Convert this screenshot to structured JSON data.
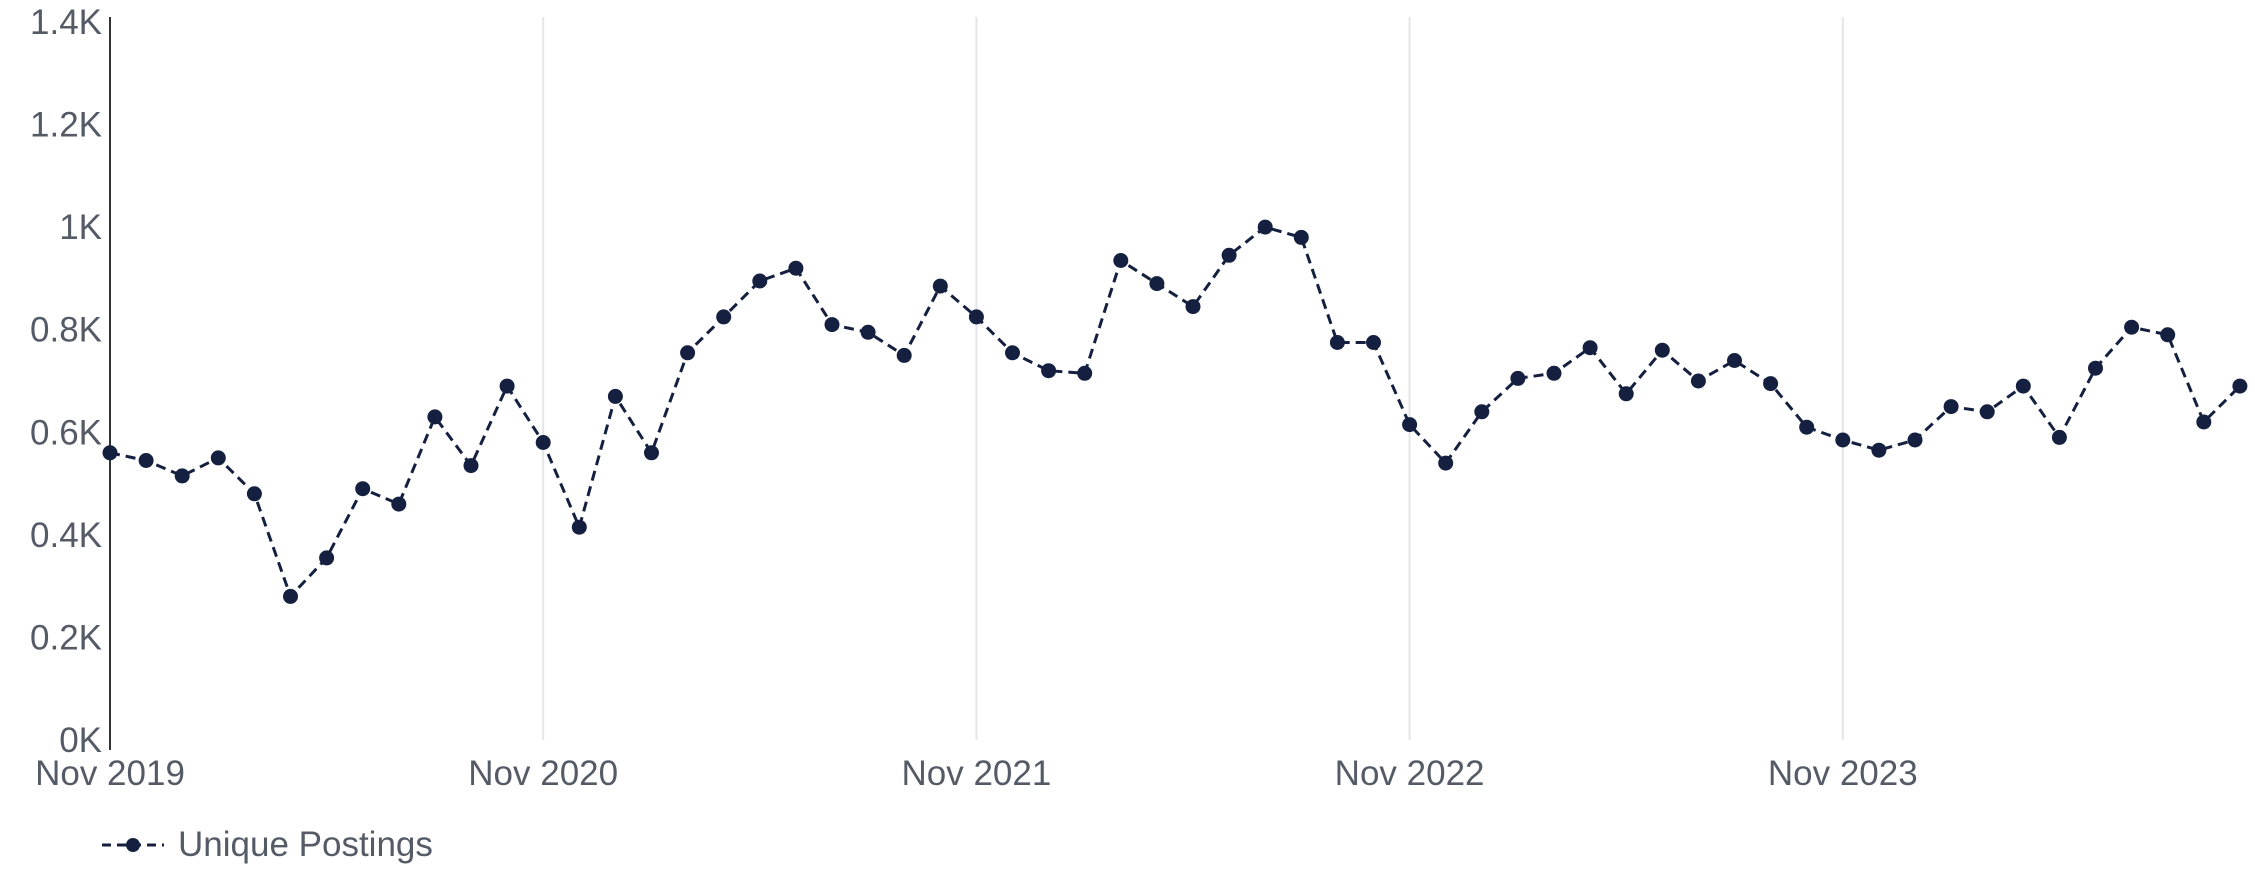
{
  "colors": {
    "series": "#152040",
    "grid": "#e3e5e8",
    "axis": "#333333",
    "text": "#555b66"
  },
  "chart_data": {
    "type": "line",
    "title": "",
    "xlabel": "",
    "ylabel": "",
    "ylim": [
      0,
      1400
    ],
    "y_ticks": [
      "0K",
      "0.2K",
      "0.4K",
      "0.6K",
      "0.8K",
      "1K",
      "1.2K",
      "1.4K"
    ],
    "x_ticks": [
      "Nov 2019",
      "Nov 2020",
      "Nov 2021",
      "Nov 2022",
      "Nov 2023"
    ],
    "grid": "vertical lines at yearly ticks",
    "legend_position": "bottom-left",
    "series": [
      {
        "name": "Unique Postings",
        "line_style": "dashed",
        "marker": "circle",
        "x": [
          "Nov 2019",
          "Dec 2019",
          "Jan 2020",
          "Feb 2020",
          "Mar 2020",
          "Apr 2020",
          "May 2020",
          "Jun 2020",
          "Jul 2020",
          "Aug 2020",
          "Sep 2020",
          "Oct 2020",
          "Nov 2020",
          "Dec 2020",
          "Jan 2021",
          "Feb 2021",
          "Mar 2021",
          "Apr 2021",
          "May 2021",
          "Jun 2021",
          "Jul 2021",
          "Aug 2021",
          "Sep 2021",
          "Oct 2021",
          "Nov 2021",
          "Dec 2021",
          "Jan 2022",
          "Feb 2022",
          "Mar 2022",
          "Apr 2022",
          "May 2022",
          "Jun 2022",
          "Jul 2022",
          "Aug 2022",
          "Sep 2022",
          "Oct 2022",
          "Nov 2022",
          "Dec 2022",
          "Jan 2023",
          "Feb 2023",
          "Mar 2023",
          "Apr 2023",
          "May 2023",
          "Jun 2023",
          "Jul 2023",
          "Aug 2023",
          "Sep 2023",
          "Oct 2023",
          "Nov 2023",
          "Dec 2023",
          "Jan 2024",
          "Feb 2024",
          "Mar 2024",
          "Apr 2024",
          "May 2024",
          "Jun 2024",
          "Jul 2024",
          "Aug 2024",
          "Sep 2024",
          "Oct 2024"
        ],
        "values": [
          560,
          545,
          515,
          550,
          480,
          280,
          355,
          490,
          460,
          630,
          535,
          690,
          580,
          415,
          670,
          560,
          755,
          825,
          895,
          920,
          810,
          795,
          750,
          885,
          825,
          755,
          720,
          715,
          935,
          890,
          845,
          945,
          1000,
          980,
          775,
          775,
          615,
          540,
          640,
          705,
          715,
          765,
          675,
          760,
          700,
          740,
          695,
          610,
          585,
          565,
          585,
          650,
          640,
          690,
          590,
          725,
          805,
          790,
          620,
          690
        ]
      }
    ]
  }
}
